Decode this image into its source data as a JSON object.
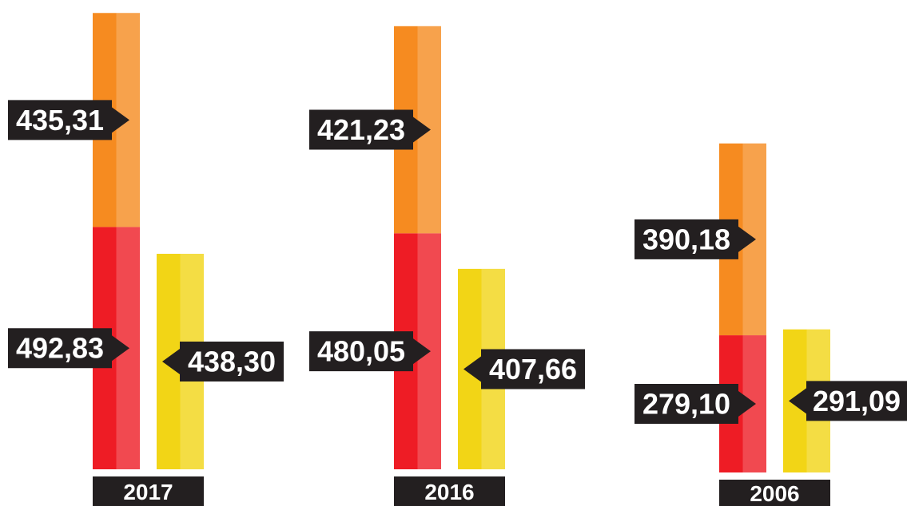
{
  "chart_data": {
    "type": "bar",
    "categories": [
      "2017",
      "2016",
      "2006"
    ],
    "series": [
      {
        "color": "#ee1c25",
        "stack": 0,
        "values": [
          492.83,
          480.05,
          279.1
        ],
        "value_labels": [
          "492,83",
          "480,05",
          "279,10"
        ]
      },
      {
        "color": "#f68b20",
        "stack": 0,
        "values": [
          435.31,
          421.23,
          390.18
        ],
        "value_labels": [
          "435,31",
          "421,23",
          "390,18"
        ]
      },
      {
        "color": "#f2d516",
        "stack": 1,
        "values": [
          438.3,
          407.66,
          291.09
        ],
        "value_labels": [
          "438,30",
          "407,66",
          "291,09"
        ]
      }
    ]
  }
}
